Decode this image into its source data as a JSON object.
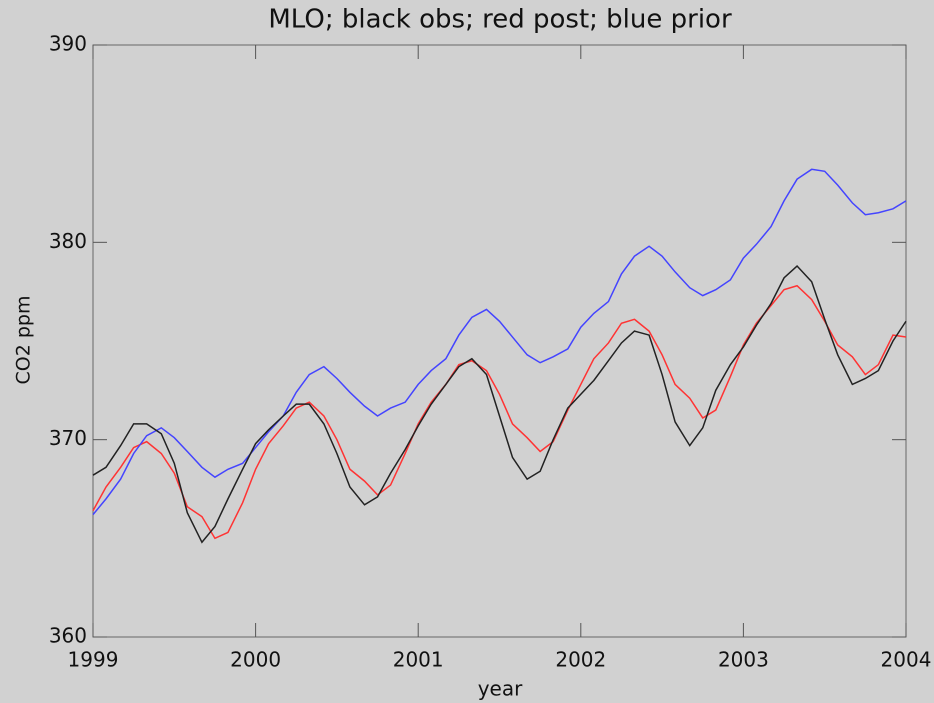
{
  "chart_data": {
    "type": "line",
    "title": "MLO; black obs; red post; blue prior",
    "x_label": "year",
    "y_label": "CO2 ppm",
    "x": [
      1999,
      1999.08,
      1999.17,
      1999.25,
      1999.33,
      1999.42,
      1999.5,
      1999.58,
      1999.67,
      1999.75,
      1999.83,
      1999.92,
      2000,
      2000.08,
      2000.17,
      2000.25,
      2000.33,
      2000.42,
      2000.5,
      2000.58,
      2000.67,
      2000.75,
      2000.83,
      2000.92,
      2001,
      2001.08,
      2001.17,
      2001.25,
      2001.33,
      2001.42,
      2001.5,
      2001.58,
      2001.67,
      2001.75,
      2001.83,
      2001.92,
      2002,
      2002.08,
      2002.17,
      2002.25,
      2002.33,
      2002.42,
      2002.5,
      2002.58,
      2002.67,
      2002.75,
      2002.83,
      2002.92,
      2003,
      2003.08,
      2003.17,
      2003.25,
      2003.33,
      2003.42,
      2003.5,
      2003.58,
      2003.67,
      2003.75,
      2003.83,
      2003.92,
      2004
    ],
    "series": [
      {
        "color": "#ff3333",
        "values": [
          366.4,
          367.6,
          368.6,
          369.6,
          369.9,
          369.3,
          368.3,
          366.6,
          366.1,
          365.0,
          365.3,
          366.8,
          368.5,
          369.8,
          370.7,
          371.6,
          371.9,
          371.2,
          370.0,
          368.5,
          367.9,
          367.2,
          367.7,
          369.3,
          370.8,
          371.9,
          372.8,
          373.8,
          374.0,
          373.5,
          372.3,
          370.8,
          370.1,
          369.4,
          369.9,
          371.5,
          372.8,
          374.1,
          374.9,
          375.9,
          376.1,
          375.5,
          374.3,
          372.8,
          372.1,
          371.1,
          371.5,
          373.2,
          374.8,
          375.9,
          376.8,
          377.6,
          377.8,
          377.1,
          376.0,
          374.8,
          374.2,
          373.3,
          373.8,
          375.3,
          375.2
        ]
      },
      {
        "color": "#4444ff",
        "values": [
          366.2,
          367.0,
          368.0,
          369.3,
          370.2,
          370.6,
          370.1,
          369.4,
          368.6,
          368.1,
          368.5,
          368.8,
          369.6,
          370.4,
          371.2,
          372.4,
          373.3,
          373.7,
          373.1,
          372.4,
          371.7,
          371.2,
          371.6,
          371.9,
          372.8,
          373.5,
          374.1,
          375.3,
          376.2,
          376.6,
          376.0,
          375.2,
          374.3,
          373.9,
          374.2,
          374.6,
          375.7,
          376.4,
          377.0,
          378.4,
          379.3,
          379.8,
          379.3,
          378.5,
          377.7,
          377.3,
          377.6,
          378.1,
          379.2,
          379.9,
          380.8,
          382.1,
          383.2,
          383.7,
          383.6,
          382.9,
          382.0,
          381.4,
          381.5,
          381.7,
          382.1
        ]
      },
      {
        "color": "#222222",
        "values": [
          368.2,
          368.6,
          369.7,
          370.8,
          370.8,
          370.3,
          368.8,
          366.3,
          364.8,
          365.6,
          367.0,
          368.5,
          369.8,
          370.5,
          371.2,
          371.8,
          371.8,
          370.8,
          369.3,
          367.6,
          366.7,
          367.1,
          368.3,
          369.5,
          370.7,
          371.8,
          372.8,
          373.7,
          374.1,
          373.3,
          371.2,
          369.1,
          368.0,
          368.4,
          370.0,
          371.6,
          372.3,
          373.0,
          374.0,
          374.9,
          375.5,
          375.3,
          373.3,
          370.9,
          369.7,
          370.6,
          372.5,
          373.8,
          374.7,
          375.8,
          376.9,
          378.2,
          378.8,
          378.0,
          376.1,
          374.3,
          372.8,
          373.1,
          373.5,
          375.0,
          376.0
        ]
      }
    ],
    "xlim": [
      1999,
      2004
    ],
    "xticks": [
      1999,
      2000,
      2001,
      2002,
      2003,
      2004
    ],
    "ylim": [
      360,
      390
    ],
    "yticks": [
      360,
      370,
      380,
      390
    ]
  }
}
